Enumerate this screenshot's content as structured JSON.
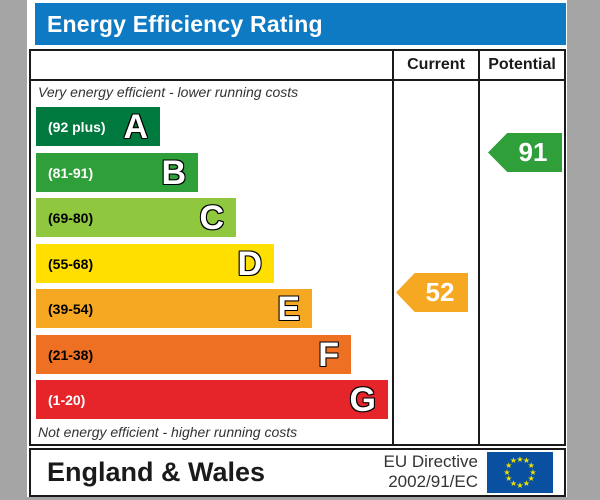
{
  "title": "Energy Efficiency Rating",
  "header": {
    "current": "Current",
    "potential": "Potential"
  },
  "notes": {
    "top": "Very energy efficient - lower running costs",
    "bottom": "Not energy efficient - higher running costs"
  },
  "bands": [
    {
      "letter": "A",
      "range": "(92 plus)",
      "color": "#00793e",
      "text_color": "#ffffff"
    },
    {
      "letter": "B",
      "range": "(81-91)",
      "color": "#2f9f3a",
      "text_color": "#ffffff"
    },
    {
      "letter": "C",
      "range": "(69-80)",
      "color": "#8fc83e",
      "text_color": "#000000"
    },
    {
      "letter": "D",
      "range": "(55-68)",
      "color": "#ffdf00",
      "text_color": "#000000"
    },
    {
      "letter": "E",
      "range": "(39-54)",
      "color": "#f7a823",
      "text_color": "#000000"
    },
    {
      "letter": "F",
      "range": "(21-38)",
      "color": "#ee7023",
      "text_color": "#000000"
    },
    {
      "letter": "G",
      "range": "(1-20)",
      "color": "#e6252b",
      "text_color": "#ffffff"
    }
  ],
  "ratings": {
    "current": {
      "value": "52",
      "band": "E",
      "color": "#f7a823"
    },
    "potential": {
      "value": "91",
      "band": "B",
      "color": "#2f9f3a"
    }
  },
  "footer": {
    "region": "England & Wales",
    "directive_line1": "EU Directive",
    "directive_line2": "2002/91/EC"
  },
  "eu_flag": {
    "background": "#0a50a1",
    "star_color": "#f0e000",
    "star_count": 12
  },
  "colors": {
    "title_bar": "#0e7ac4",
    "frame": "#a5a5a5",
    "border": "#1a1a1a"
  },
  "chart_data": {
    "type": "bar",
    "title": "Energy Efficiency Rating",
    "categories": [
      "A",
      "B",
      "C",
      "D",
      "E",
      "F",
      "G"
    ],
    "band_ranges": [
      "92 plus",
      "81-91",
      "69-80",
      "55-68",
      "39-54",
      "21-38",
      "1-20"
    ],
    "band_colors": [
      "#00793e",
      "#2f9f3a",
      "#8fc83e",
      "#ffdf00",
      "#f7a823",
      "#ee7023",
      "#e6252b"
    ],
    "series": [
      {
        "name": "Current",
        "value": 52,
        "band": "E"
      },
      {
        "name": "Potential",
        "value": 91,
        "band": "B"
      }
    ],
    "annotation_top": "Very energy efficient - lower running costs",
    "annotation_bottom": "Not energy efficient - higher running costs",
    "region": "England & Wales",
    "directive": "EU Directive 2002/91/EC",
    "value_range": [
      1,
      100
    ]
  }
}
